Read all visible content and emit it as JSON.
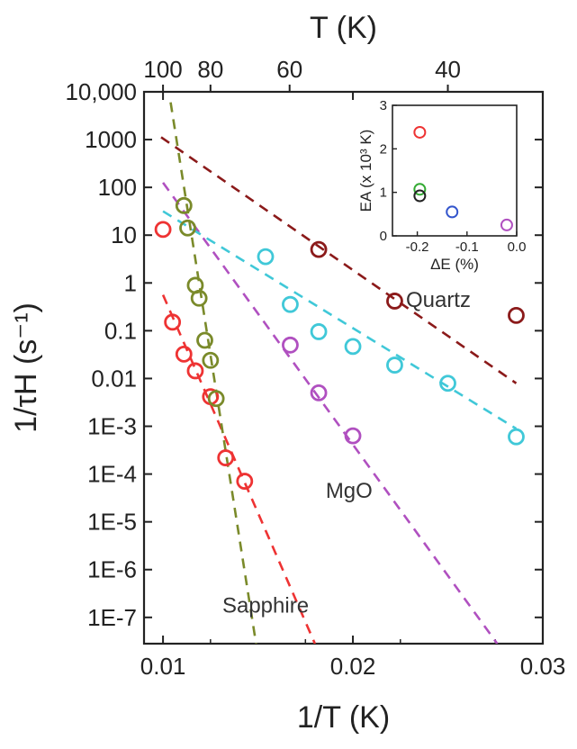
{
  "chart_data": [
    {
      "type": "scatter",
      "title": "",
      "xlabel": "1/T (K)",
      "ylabel": "1/τH (s⁻¹)",
      "top_xlabel": "T (K)",
      "xlim": [
        0.009,
        0.03
      ],
      "ylim_log10": [
        -7.55,
        4
      ],
      "x_ticks": [
        0.01,
        0.02,
        0.03
      ],
      "x_tick_labels": [
        "0.01",
        "0.02",
        "0.03"
      ],
      "y_ticks_log10": [
        4,
        3,
        2,
        1,
        0,
        -1,
        -2,
        -3,
        -4,
        -5,
        -6,
        -7
      ],
      "y_tick_labels": [
        "10,000",
        "1000",
        "100",
        "10",
        "1",
        "0.1",
        "0.01",
        "1E-3",
        "1E-4",
        "1E-5",
        "1E-6",
        "1E-7"
      ],
      "top_ticks_T": [
        100,
        80,
        60,
        40
      ],
      "top_tick_labels": [
        "100",
        "80",
        "60",
        "40"
      ],
      "y_scale": "log",
      "grid": false,
      "annotations": [
        {
          "text": "Quartz",
          "x": 0.0245,
          "y_log10": -0.5
        },
        {
          "text": "MgO",
          "x": 0.0198,
          "y_log10": -4.5
        },
        {
          "text": "Sapphire",
          "x": 0.0154,
          "y_log10": -6.9
        }
      ],
      "series": [
        {
          "label": "Sapphire",
          "color": "#ee3333",
          "points": [
            {
              "x": 0.01,
              "y_log10": 1.12
            },
            {
              "x": 0.0105,
              "y_log10": -0.82
            },
            {
              "x": 0.0111,
              "y_log10": -1.49
            },
            {
              "x": 0.0117,
              "y_log10": -1.84
            },
            {
              "x": 0.0125,
              "y_log10": -2.38
            },
            {
              "x": 0.0133,
              "y_log10": -3.66
            },
            {
              "x": 0.0143,
              "y_log10": -4.15
            }
          ],
          "fit": {
            "x": [
              0.01,
              0.018
            ],
            "y_log10": [
              -0.25,
              -7.55
            ]
          }
        },
        {
          "label": "Green",
          "color": "#7a8a2a",
          "points": [
            {
              "x": 0.0111,
              "y_log10": 1.62
            },
            {
              "x": 0.0113,
              "y_log10": 1.15
            },
            {
              "x": 0.0117,
              "y_log10": -0.05
            },
            {
              "x": 0.0119,
              "y_log10": -0.32
            },
            {
              "x": 0.0122,
              "y_log10": -1.2
            },
            {
              "x": 0.0125,
              "y_log10": -1.62
            },
            {
              "x": 0.0128,
              "y_log10": -2.42
            }
          ],
          "fit": {
            "x": [
              0.0104,
              0.0149
            ],
            "y_log10": [
              3.78,
              -7.55
            ]
          }
        },
        {
          "label": "MgO",
          "color": "#b050c0",
          "points": [
            {
              "x": 0.0167,
              "y_log10": -1.3
            },
            {
              "x": 0.0182,
              "y_log10": -2.3
            },
            {
              "x": 0.02,
              "y_log10": -3.2
            }
          ],
          "fit": {
            "x": [
              0.01,
              0.0276
            ],
            "y_log10": [
              2.1,
              -7.55
            ]
          }
        },
        {
          "label": "Quartz",
          "color": "#40c8d8",
          "points": [
            {
              "x": 0.0154,
              "y_log10": 0.55
            },
            {
              "x": 0.0167,
              "y_log10": -0.45
            },
            {
              "x": 0.0182,
              "y_log10": -1.02
            },
            {
              "x": 0.02,
              "y_log10": -1.33
            },
            {
              "x": 0.0222,
              "y_log10": -1.72
            },
            {
              "x": 0.025,
              "y_log10": -2.1
            },
            {
              "x": 0.0286,
              "y_log10": -3.22
            }
          ],
          "fit": {
            "x": [
              0.01,
              0.0286
            ],
            "y_log10": [
              1.5,
              -3.05
            ]
          }
        },
        {
          "label": "Dark red",
          "color": "#8b1a1a",
          "points": [
            {
              "x": 0.0182,
              "y_log10": 0.7
            },
            {
              "x": 0.0222,
              "y_log10": -0.38
            },
            {
              "x": 0.0286,
              "y_log10": -0.68
            }
          ],
          "fit": {
            "x": [
              0.0099,
              0.0286
            ],
            "y_log10": [
              3.05,
              -2.1
            ]
          }
        }
      ]
    },
    {
      "type": "scatter",
      "title": "",
      "xlabel": "ΔE (%)",
      "ylabel": "EA (x 10³ K)",
      "xlim": [
        -0.25,
        0.0
      ],
      "ylim": [
        0,
        3
      ],
      "x_ticks": [
        -0.2,
        -0.1,
        0.0
      ],
      "x_tick_labels": [
        "-0.2",
        "-0.1",
        "0.0"
      ],
      "y_ticks": [
        0,
        1,
        2,
        3
      ],
      "y_tick_labels": [
        "0",
        "1",
        "2",
        "3"
      ],
      "grid": false,
      "points": [
        {
          "x": -0.195,
          "y": 2.38,
          "color": "#ee3333"
        },
        {
          "x": -0.195,
          "y": 1.07,
          "color": "#33aa33"
        },
        {
          "x": -0.195,
          "y": 0.92,
          "color": "#222222"
        },
        {
          "x": -0.13,
          "y": 0.55,
          "color": "#3355cc"
        },
        {
          "x": -0.02,
          "y": 0.25,
          "color": "#b050c0"
        }
      ]
    }
  ]
}
